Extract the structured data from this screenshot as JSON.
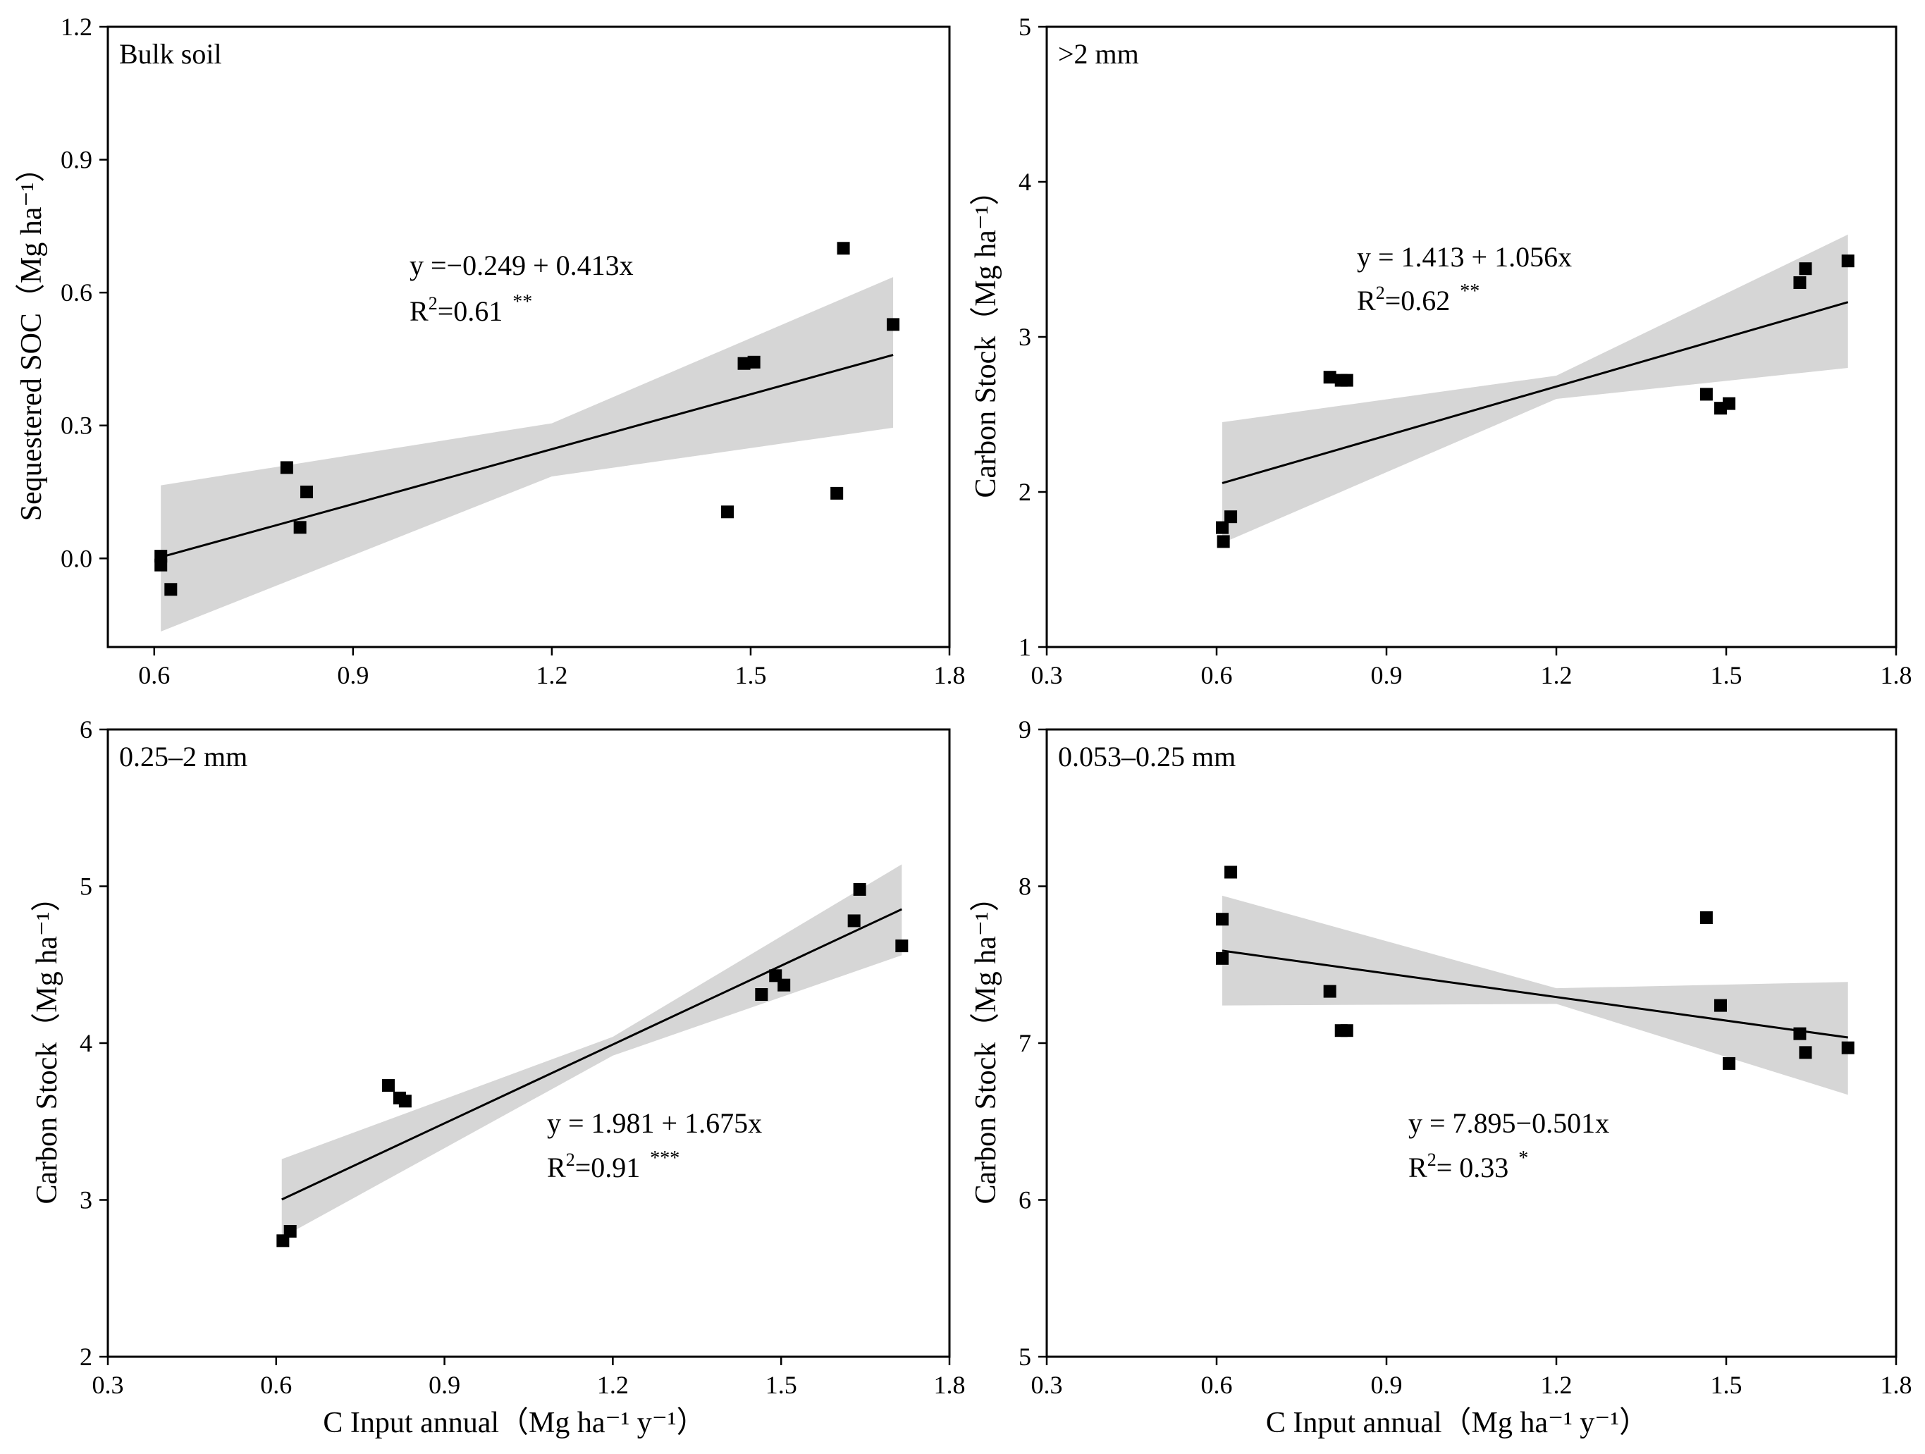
{
  "chart_data": [
    {
      "type": "scatter",
      "panel_label": "Bulk soil",
      "ylabel": "Sequestered SOC（Mg ha⁻¹）",
      "xlabel": "",
      "xlim": [
        0.53,
        1.8
      ],
      "ylim": [
        -0.2,
        1.2
      ],
      "xticks": [
        0.6,
        0.9,
        1.2,
        1.5,
        1.8
      ],
      "xtick_labels": [
        "0.6",
        "0.9",
        "1.2",
        "1.5",
        "1.8"
      ],
      "yticks": [
        0.0,
        0.3,
        0.6,
        0.9,
        1.2
      ],
      "ytick_labels": [
        "0.0",
        "0.3",
        "0.6",
        "0.9",
        "1.2"
      ],
      "points": [
        {
          "x": 0.61,
          "y": 0.005
        },
        {
          "x": 0.61,
          "y": -0.015
        },
        {
          "x": 0.625,
          "y": -0.07
        },
        {
          "x": 0.8,
          "y": 0.205
        },
        {
          "x": 0.82,
          "y": 0.07
        },
        {
          "x": 0.83,
          "y": 0.15
        },
        {
          "x": 1.465,
          "y": 0.105
        },
        {
          "x": 1.49,
          "y": 0.44
        },
        {
          "x": 1.505,
          "y": 0.443
        },
        {
          "x": 1.63,
          "y": 0.147
        },
        {
          "x": 1.64,
          "y": 0.7
        },
        {
          "x": 1.715,
          "y": 0.528
        }
      ],
      "fit": {
        "intercept": -0.249,
        "slope": 0.413,
        "x_range": [
          0.61,
          1.715
        ]
      },
      "band": {
        "x": [
          0.61,
          1.2,
          1.715
        ],
        "upper": [
          0.165,
          0.305,
          0.635
        ],
        "lower": [
          -0.165,
          0.185,
          0.295
        ]
      },
      "equation": "y =−0.249 + 0.413x",
      "r2_prefix": "R",
      "r2_sup": "2",
      "r2_value": "=0.61",
      "significance": "**"
    },
    {
      "type": "scatter",
      "panel_label": ">2 mm",
      "ylabel": "Carbon Stock（Mg ha⁻¹）",
      "xlabel": "",
      "xlim": [
        0.3,
        1.8
      ],
      "ylim": [
        1,
        5
      ],
      "xticks": [
        0.3,
        0.6,
        0.9,
        1.2,
        1.5,
        1.8
      ],
      "xtick_labels": [
        "0.3",
        "0.6",
        "0.9",
        "1.2",
        "1.5",
        "1.8"
      ],
      "yticks": [
        1,
        2,
        3,
        4,
        5
      ],
      "ytick_labels": [
        "1",
        "2",
        "3",
        "4",
        "5"
      ],
      "points": [
        {
          "x": 0.61,
          "y": 1.77
        },
        {
          "x": 0.612,
          "y": 1.68
        },
        {
          "x": 0.625,
          "y": 1.84
        },
        {
          "x": 0.8,
          "y": 2.74
        },
        {
          "x": 0.82,
          "y": 2.72
        },
        {
          "x": 0.83,
          "y": 2.72
        },
        {
          "x": 1.465,
          "y": 2.63
        },
        {
          "x": 1.49,
          "y": 2.54
        },
        {
          "x": 1.505,
          "y": 2.57
        },
        {
          "x": 1.63,
          "y": 3.35
        },
        {
          "x": 1.64,
          "y": 3.44
        },
        {
          "x": 1.715,
          "y": 3.49
        }
      ],
      "fit": {
        "intercept": 1.413,
        "slope": 1.056,
        "x_range": [
          0.61,
          1.715
        ]
      },
      "band": {
        "x": [
          0.61,
          1.2,
          1.715
        ],
        "upper": [
          2.45,
          2.75,
          3.66
        ],
        "lower": [
          1.67,
          2.6,
          2.8
        ]
      },
      "equation": "y = 1.413 + 1.056x",
      "r2_prefix": "R",
      "r2_sup": "2",
      "r2_value": "=0.62",
      "significance": "**"
    },
    {
      "type": "scatter",
      "panel_label": "0.25–2 mm",
      "ylabel": "Carbon Stock（Mg ha⁻¹）",
      "xlabel": "C Input annual（Mg ha⁻¹ y⁻¹）",
      "xlim": [
        0.3,
        1.8
      ],
      "ylim": [
        2,
        6
      ],
      "xticks": [
        0.3,
        0.6,
        0.9,
        1.2,
        1.5,
        1.8
      ],
      "xtick_labels": [
        "0.3",
        "0.6",
        "0.9",
        "1.2",
        "1.5",
        "1.8"
      ],
      "yticks": [
        2,
        3,
        4,
        5,
        6
      ],
      "ytick_labels": [
        "2",
        "3",
        "4",
        "5",
        "6"
      ],
      "points": [
        {
          "x": 0.612,
          "y": 2.74
        },
        {
          "x": 0.625,
          "y": 2.8
        },
        {
          "x": 0.8,
          "y": 3.73
        },
        {
          "x": 0.82,
          "y": 3.65
        },
        {
          "x": 0.83,
          "y": 3.63
        },
        {
          "x": 1.465,
          "y": 4.31
        },
        {
          "x": 1.49,
          "y": 4.43
        },
        {
          "x": 1.505,
          "y": 4.37
        },
        {
          "x": 1.63,
          "y": 4.78
        },
        {
          "x": 1.64,
          "y": 4.98
        },
        {
          "x": 1.715,
          "y": 4.62
        }
      ],
      "fit": {
        "intercept": 1.981,
        "slope": 1.675,
        "x_range": [
          0.61,
          1.715
        ]
      },
      "band": {
        "x": [
          0.61,
          1.2,
          1.715
        ],
        "upper": [
          3.26,
          4.04,
          5.14
        ],
        "lower": [
          2.76,
          3.92,
          4.56
        ]
      },
      "equation": "y = 1.981 + 1.675x",
      "r2_prefix": "R",
      "r2_sup": "2",
      "r2_value": "=0.91",
      "significance": "***"
    },
    {
      "type": "scatter",
      "panel_label": "0.053–0.25 mm",
      "ylabel": "Carbon Stock（Mg ha⁻¹）",
      "xlabel": "C Input annual（Mg ha⁻¹ y⁻¹）",
      "xlim": [
        0.3,
        1.8
      ],
      "ylim": [
        5,
        9
      ],
      "xticks": [
        0.3,
        0.6,
        0.9,
        1.2,
        1.5,
        1.8
      ],
      "xtick_labels": [
        "0.3",
        "0.6",
        "0.9",
        "1.2",
        "1.5",
        "1.8"
      ],
      "yticks": [
        5,
        6,
        7,
        8,
        9
      ],
      "ytick_labels": [
        "5",
        "6",
        "7",
        "8",
        "9"
      ],
      "points": [
        {
          "x": 0.61,
          "y": 7.79
        },
        {
          "x": 0.61,
          "y": 7.54
        },
        {
          "x": 0.625,
          "y": 8.09
        },
        {
          "x": 0.8,
          "y": 7.33
        },
        {
          "x": 0.82,
          "y": 7.08
        },
        {
          "x": 0.83,
          "y": 7.08
        },
        {
          "x": 1.465,
          "y": 7.8
        },
        {
          "x": 1.49,
          "y": 7.24
        },
        {
          "x": 1.505,
          "y": 6.87
        },
        {
          "x": 1.63,
          "y": 7.06
        },
        {
          "x": 1.64,
          "y": 6.94
        },
        {
          "x": 1.715,
          "y": 6.97
        }
      ],
      "fit": {
        "intercept": 7.895,
        "slope": -0.501,
        "x_range": [
          0.61,
          1.715
        ]
      },
      "band": {
        "x": [
          0.61,
          1.2,
          1.715
        ],
        "upper": [
          7.94,
          7.35,
          7.39
        ],
        "lower": [
          7.24,
          7.25,
          6.67
        ]
      },
      "equation": "y = 7.895−0.501x",
      "r2_prefix": "R",
      "r2_sup": "2",
      "r2_value": "= 0.33",
      "significance": "*"
    }
  ]
}
